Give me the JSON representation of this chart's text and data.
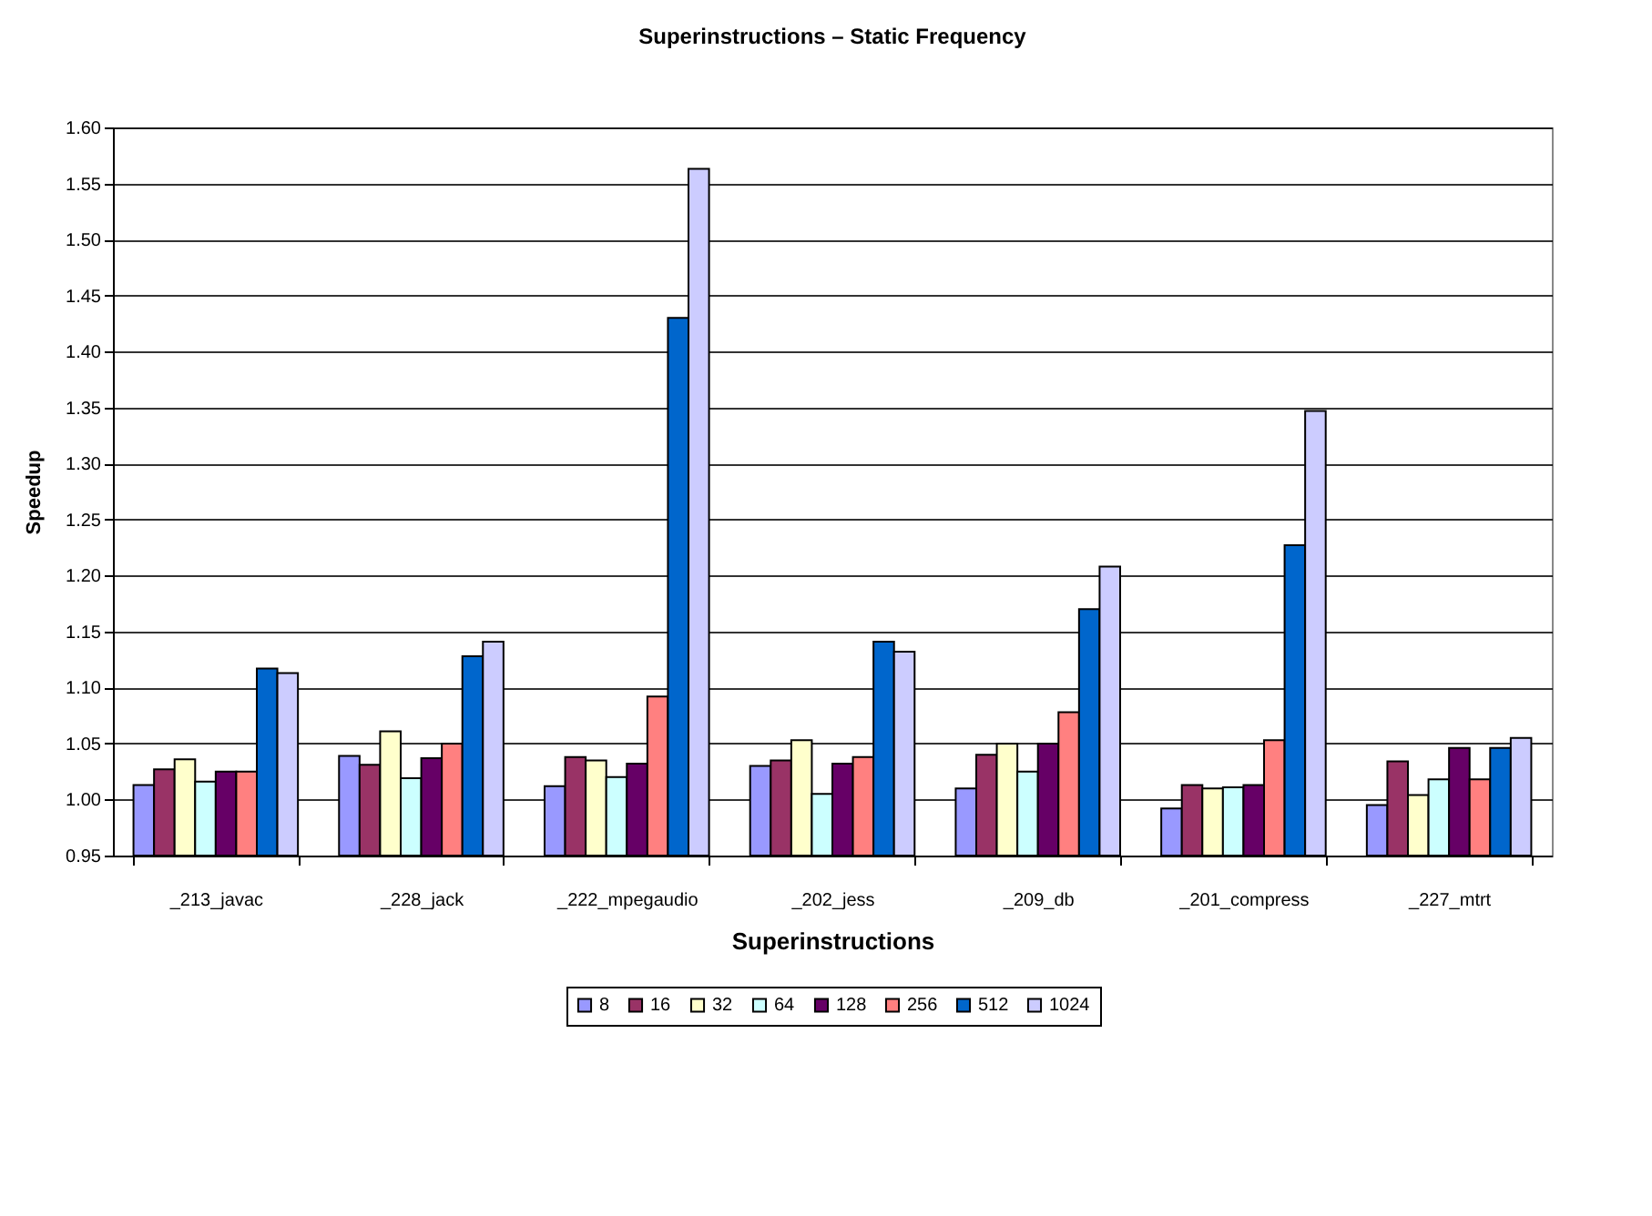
{
  "chart_data": {
    "type": "bar",
    "title": "Superinstructions – Static Frequency",
    "xlabel": "Superinstructions",
    "ylabel": "Speedup",
    "categories": [
      "_213_javac",
      "_228_jack",
      "_222_mpegaudio",
      "_202_jess",
      "_209_db",
      "_201_compress",
      "_227_mtrt"
    ],
    "series": [
      {
        "name": "8",
        "color": "#9999ff",
        "values": [
          1.013,
          1.039,
          1.012,
          1.03,
          1.01,
          0.992,
          0.995
        ]
      },
      {
        "name": "16",
        "color": "#993366",
        "values": [
          1.027,
          1.031,
          1.038,
          1.035,
          1.04,
          1.013,
          1.034
        ]
      },
      {
        "name": "32",
        "color": "#ffffcc",
        "values": [
          1.036,
          1.061,
          1.035,
          1.053,
          1.05,
          1.01,
          1.004
        ]
      },
      {
        "name": "64",
        "color": "#ccffff",
        "values": [
          1.016,
          1.019,
          1.02,
          1.005,
          1.025,
          1.011,
          1.018
        ]
      },
      {
        "name": "128",
        "color": "#660066",
        "values": [
          1.025,
          1.037,
          1.032,
          1.032,
          1.05,
          1.013,
          1.046
        ]
      },
      {
        "name": "256",
        "color": "#ff8080",
        "values": [
          1.025,
          1.05,
          1.092,
          1.038,
          1.078,
          1.053,
          1.018
        ]
      },
      {
        "name": "512",
        "color": "#0066cc",
        "values": [
          1.117,
          1.128,
          1.43,
          1.141,
          1.17,
          1.227,
          1.046
        ]
      },
      {
        "name": "1024",
        "color": "#ccccff",
        "values": [
          1.113,
          1.141,
          1.563,
          1.132,
          1.208,
          1.347,
          1.055
        ]
      }
    ],
    "ylim": [
      0.95,
      1.6
    ],
    "yticks": [
      {
        "value": 0.95,
        "label": "0.95"
      },
      {
        "value": 1.0,
        "label": "1.00"
      },
      {
        "value": 1.05,
        "label": "1.05"
      },
      {
        "value": 1.1,
        "label": "1.10"
      },
      {
        "value": 1.15,
        "label": "1.15"
      },
      {
        "value": 1.2,
        "label": "1.20"
      },
      {
        "value": 1.25,
        "label": "1.25"
      },
      {
        "value": 1.3,
        "label": "1.30"
      },
      {
        "value": 1.35,
        "label": "1.35"
      },
      {
        "value": 1.4,
        "label": "1.40"
      },
      {
        "value": 1.45,
        "label": "1.45"
      },
      {
        "value": 1.5,
        "label": "1.50"
      },
      {
        "value": 1.55,
        "label": "1.55"
      },
      {
        "value": 1.6,
        "label": "1.60"
      }
    ],
    "grid": "y",
    "legend": "bottom"
  }
}
